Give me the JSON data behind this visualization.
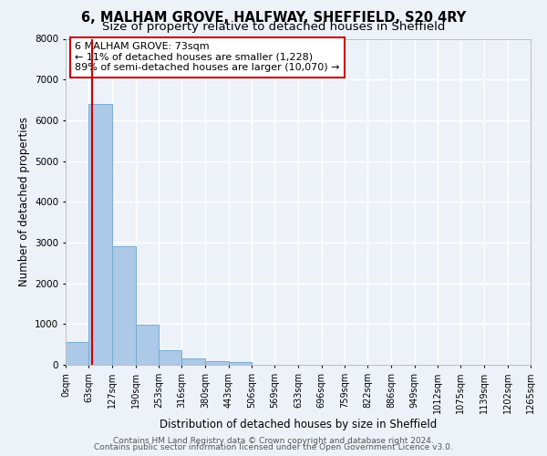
{
  "title": "6, MALHAM GROVE, HALFWAY, SHEFFIELD, S20 4RY",
  "subtitle": "Size of property relative to detached houses in Sheffield",
  "xlabel": "Distribution of detached houses by size in Sheffield",
  "ylabel": "Number of detached properties",
  "bar_values": [
    550,
    6400,
    2900,
    975,
    350,
    150,
    100,
    60,
    0,
    0,
    0,
    0,
    0,
    0,
    0,
    0,
    0,
    0,
    0,
    0
  ],
  "bin_edges": [
    0,
    63,
    127,
    190,
    253,
    316,
    380,
    443,
    506,
    569,
    633,
    696,
    759,
    822,
    886,
    949,
    1012,
    1075,
    1139,
    1202,
    1265
  ],
  "tick_labels": [
    "0sqm",
    "63sqm",
    "127sqm",
    "190sqm",
    "253sqm",
    "316sqm",
    "380sqm",
    "443sqm",
    "506sqm",
    "569sqm",
    "633sqm",
    "696sqm",
    "759sqm",
    "822sqm",
    "886sqm",
    "949sqm",
    "1012sqm",
    "1075sqm",
    "1139sqm",
    "1202sqm",
    "1265sqm"
  ],
  "bar_color": "#adc9e8",
  "bar_edge_color": "#7aaad0",
  "background_color": "#edf2f9",
  "grid_color": "#ffffff",
  "property_line_x": 73,
  "property_line_color": "#cc0000",
  "annotation_text": "6 MALHAM GROVE: 73sqm\n← 11% of detached houses are smaller (1,228)\n89% of semi-detached houses are larger (10,070) →",
  "annotation_box_color": "#ffffff",
  "annotation_box_edge": "#cc0000",
  "ylim": [
    0,
    8000
  ],
  "yticks": [
    0,
    1000,
    2000,
    3000,
    4000,
    5000,
    6000,
    7000,
    8000
  ],
  "footer1": "Contains HM Land Registry data © Crown copyright and database right 2024.",
  "footer2": "Contains public sector information licensed under the Open Government Licence v3.0.",
  "title_fontsize": 10.5,
  "subtitle_fontsize": 9.5,
  "axis_label_fontsize": 8.5,
  "tick_fontsize": 7,
  "annotation_fontsize": 8,
  "footer_fontsize": 6.5
}
